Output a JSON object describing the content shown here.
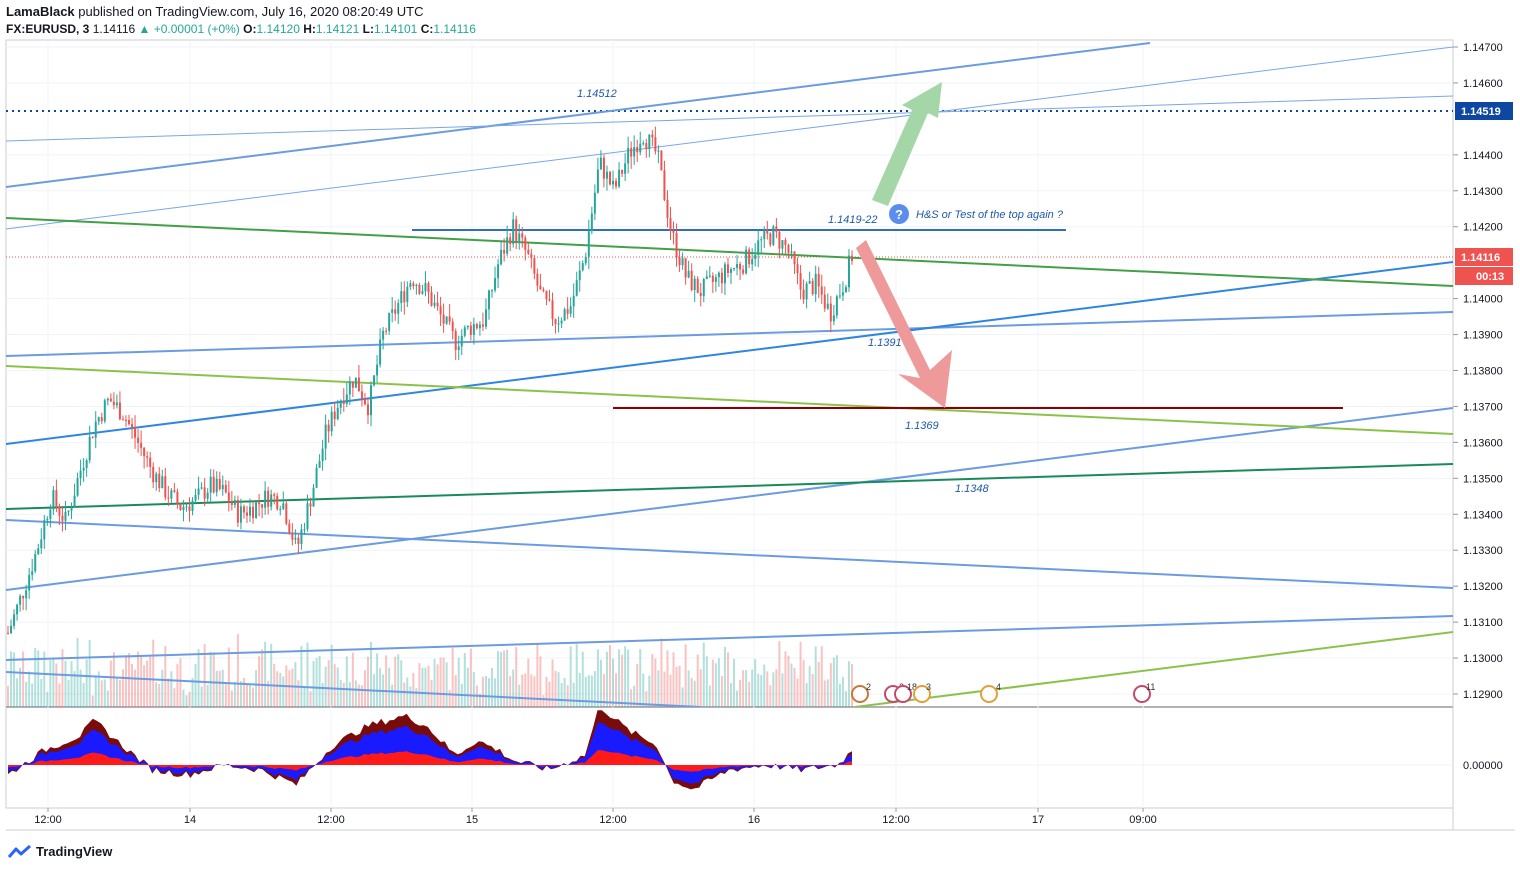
{
  "header": {
    "publisher": "LamaBlack",
    "published_text": "published on TradingView.com, July 16, 2020 08:20:49 UTC",
    "symbol": "FX:EURUSD, 3",
    "last": "1.14116",
    "change": "▲ +0.00001 (+0%)",
    "open_label": "O:",
    "open": "1.14120",
    "high_label": "H:",
    "high": "1.14121",
    "low_label": "L:",
    "low": "1.14101",
    "close_label": "C:",
    "close": "1.14116"
  },
  "footer": {
    "brand": "TradingView"
  },
  "colors": {
    "up": "#26a69a",
    "down": "#ef5350",
    "blue_line": "#5b8def",
    "green_line": "#4caf50",
    "resistance": "#8b0000",
    "price_tag": "#ef5350",
    "level_tag": "#0d47a1"
  },
  "chart_data": {
    "type": "candlestick",
    "y_axis": {
      "ticks": [
        "1.14700",
        "1.14600",
        "1.14400",
        "1.14300",
        "1.14200",
        "1.14000",
        "1.13900",
        "1.13800",
        "1.13700",
        "1.13600",
        "1.13500",
        "1.13400",
        "1.13300",
        "1.13200",
        "1.13100",
        "1.13000",
        "1.12900"
      ],
      "price_tags": [
        {
          "value": "1.14519",
          "color": "#0d47a1"
        },
        {
          "value": "1.14116",
          "color": "#ef5350"
        },
        {
          "value": "00:13",
          "color": "#ef5350"
        }
      ]
    },
    "x_axis": {
      "ticks": [
        "12:00",
        "14",
        "12:00",
        "15",
        "12:00",
        "16",
        "12:00",
        "17",
        "09:00"
      ]
    },
    "annotations": [
      "1.14512",
      "1.1419-22",
      "H&S or Test of the top again ?",
      "1.1391",
      "1.1369",
      "1.1348"
    ],
    "event_markers": [
      "2",
      "2",
      "18",
      "3",
      "4",
      "11"
    ],
    "oscillator": {
      "ticks": [
        "0.00000"
      ]
    },
    "price_path": [
      [
        0,
        1.1307
      ],
      [
        2,
        1.1318
      ],
      [
        4,
        1.133
      ],
      [
        6,
        1.1345
      ],
      [
        8,
        1.1338
      ],
      [
        10,
        1.1352
      ],
      [
        12,
        1.1365
      ],
      [
        14,
        1.1372
      ],
      [
        16,
        1.1368
      ],
      [
        18,
        1.136
      ],
      [
        20,
        1.1352
      ],
      [
        22,
        1.1346
      ],
      [
        24,
        1.1342
      ],
      [
        26,
        1.1344
      ],
      [
        28,
        1.1348
      ],
      [
        30,
        1.1346
      ],
      [
        32,
        1.134
      ],
      [
        34,
        1.1342
      ],
      [
        36,
        1.1345
      ],
      [
        38,
        1.1344
      ],
      [
        40,
        1.133
      ],
      [
        42,
        1.1345
      ],
      [
        44,
        1.1362
      ],
      [
        46,
        1.1372
      ],
      [
        48,
        1.1378
      ],
      [
        50,
        1.137
      ],
      [
        52,
        1.139
      ],
      [
        54,
        1.1398
      ],
      [
        56,
        1.1406
      ],
      [
        58,
        1.1402
      ],
      [
        60,
        1.1395
      ],
      [
        62,
        1.1388
      ],
      [
        64,
        1.1392
      ],
      [
        66,
        1.1394
      ],
      [
        68,
        1.141
      ],
      [
        70,
        1.142
      ],
      [
        72,
        1.1412
      ],
      [
        74,
        1.14
      ],
      [
        76,
        1.1394
      ],
      [
        78,
        1.1398
      ],
      [
        80,
        1.1412
      ],
      [
        82,
        1.1438
      ],
      [
        84,
        1.143
      ],
      [
        86,
        1.144
      ],
      [
        88,
        1.1446
      ],
      [
        90,
        1.144
      ],
      [
        92,
        1.1418
      ],
      [
        94,
        1.1406
      ],
      [
        96,
        1.1402
      ],
      [
        98,
        1.1405
      ],
      [
        100,
        1.1408
      ],
      [
        102,
        1.141
      ],
      [
        104,
        1.1415
      ],
      [
        106,
        1.1418
      ],
      [
        108,
        1.1414
      ],
      [
        110,
        1.1402
      ],
      [
        112,
        1.1404
      ],
      [
        114,
        1.1396
      ],
      [
        116,
        1.1405
      ],
      [
        117,
        1.1412
      ]
    ],
    "oscillator_path": [
      [
        0,
        -0.2
      ],
      [
        5,
        0.3
      ],
      [
        10,
        0.6
      ],
      [
        12,
        0.9
      ],
      [
        15,
        0.5
      ],
      [
        20,
        -0.1
      ],
      [
        25,
        -0.2
      ],
      [
        30,
        0.0
      ],
      [
        35,
        -0.1
      ],
      [
        40,
        -0.4
      ],
      [
        45,
        0.4
      ],
      [
        50,
        0.8
      ],
      [
        55,
        1.0
      ],
      [
        58,
        0.8
      ],
      [
        62,
        0.2
      ],
      [
        65,
        0.5
      ],
      [
        68,
        0.3
      ],
      [
        70,
        0.1
      ],
      [
        75,
        -0.1
      ],
      [
        80,
        0.2
      ],
      [
        82,
        1.2
      ],
      [
        86,
        0.7
      ],
      [
        90,
        0.4
      ],
      [
        92,
        -0.3
      ],
      [
        95,
        -0.5
      ],
      [
        100,
        -0.1
      ],
      [
        105,
        0.0
      ],
      [
        110,
        -0.1
      ],
      [
        115,
        0.0
      ],
      [
        117,
        0.3
      ]
    ]
  }
}
